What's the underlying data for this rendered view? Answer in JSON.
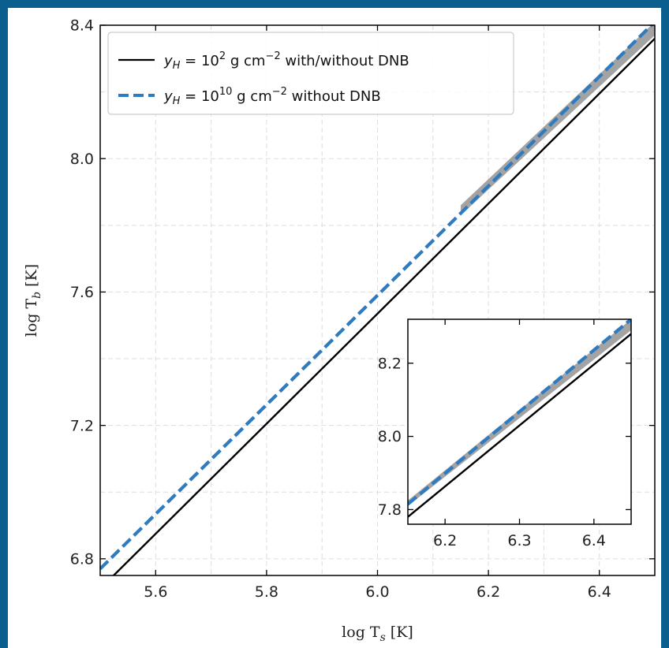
{
  "chart_data": [
    {
      "type": "line",
      "xlabel": "log T_s [K]",
      "ylabel": "log T_b [K]",
      "xlim": [
        5.5,
        6.5
      ],
      "ylim": [
        6.75,
        8.4
      ],
      "xticks": [
        5.6,
        5.8,
        6.0,
        6.2,
        6.4
      ],
      "yticks": [
        6.8,
        7.2,
        7.6,
        8.0,
        8.4
      ],
      "xtick_labels": [
        "5.6",
        "5.8",
        "6.0",
        "6.2",
        "6.4"
      ],
      "ytick_labels": [
        "6.8",
        "7.2",
        "7.6",
        "8.0",
        "8.4"
      ],
      "grid": true,
      "legend_position": "top-left",
      "series": [
        {
          "name": "y_H = 10^2 g cm^-2 with/without DNB",
          "style": "solid",
          "color": "#000000",
          "x": [
            5.5,
            6.5
          ],
          "y": [
            6.71,
            8.36
          ]
        },
        {
          "name": "",
          "style": "band",
          "color": "#999999",
          "x": [
            6.15,
            6.5
          ],
          "y_low": [
            7.83,
            8.37
          ],
          "y_high": [
            7.86,
            8.41
          ]
        },
        {
          "name": "y_H = 10^10 g cm^-2 without DNB",
          "style": "dashed",
          "color": "#2f7bbf",
          "x": [
            5.5,
            6.5
          ],
          "y": [
            6.77,
            8.41
          ]
        }
      ]
    },
    {
      "type": "line",
      "title": "inset",
      "xlim": [
        6.15,
        6.45
      ],
      "ylim": [
        7.76,
        8.32
      ],
      "xticks": [
        6.2,
        6.3,
        6.4
      ],
      "yticks": [
        7.8,
        8.0,
        8.2
      ],
      "xtick_labels": [
        "6.2",
        "6.3",
        "6.4"
      ],
      "ytick_labels": [
        "7.8",
        "8.0",
        "8.2"
      ],
      "grid": false,
      "series": [
        {
          "style": "solid",
          "color": "#000000",
          "x": [
            6.15,
            6.45
          ],
          "y": [
            7.78,
            8.28
          ]
        },
        {
          "style": "band",
          "color": "#999999",
          "x": [
            6.15,
            6.45
          ],
          "y_low": [
            7.81,
            8.29
          ],
          "y_high": [
            7.825,
            8.32
          ]
        },
        {
          "style": "dashed",
          "color": "#2f7bbf",
          "x": [
            6.15,
            6.45
          ],
          "y": [
            7.815,
            8.32
          ]
        }
      ]
    }
  ],
  "legend": {
    "entry1": {
      "sym": "y",
      "sub": "H",
      "eq": " = 10",
      "exp": "2",
      "mid": " g cm",
      "exp2": "−2",
      "tail": " with/without DNB"
    },
    "entry2": {
      "sym": "y",
      "sub": "H",
      "eq": " = 10",
      "exp": "10",
      "mid": " g cm",
      "exp2": "−2",
      "tail": " without DNB"
    }
  },
  "axis_labels": {
    "x_pre": "log T",
    "x_sub": "s",
    "x_post": " [K]",
    "y_pre": "log T",
    "y_sub": "b",
    "y_post": " [K]"
  }
}
